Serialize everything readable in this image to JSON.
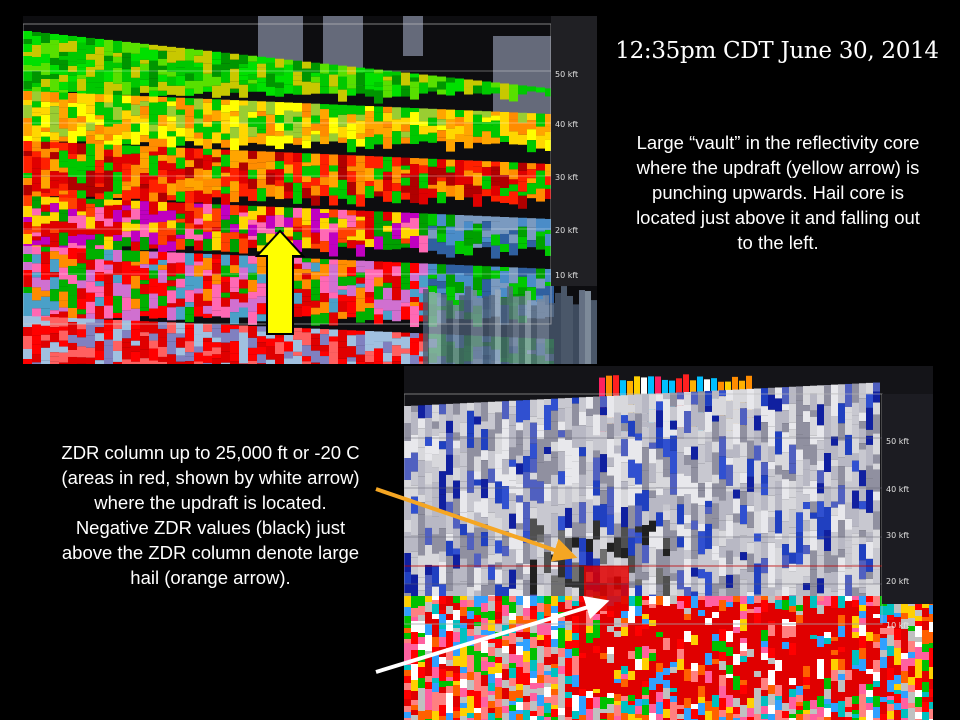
{
  "title": "12:35pm CDT June 30, 2014",
  "top_caption": "Large “vault” in the reflectivity core where the updraft  (yellow arrow) is punching upwards. Hail core is located just above it and falling out to the left.",
  "bottom_caption": "ZDR column up to 25,000 ft or -20 C (areas in red, shown by white arrow) where the updraft is located. Negative ZDR values (black) just above the ZDR column denote large hail (orange arrow).",
  "height_labels": [
    "50 kft",
    "40 kft",
    "30 kft",
    "20 kft",
    "10 kft"
  ],
  "colors": {
    "updraft_arrow": "#ffff00",
    "hail_arrow": "#f5a623",
    "zdr_column_arrow": "#ffffff"
  }
}
